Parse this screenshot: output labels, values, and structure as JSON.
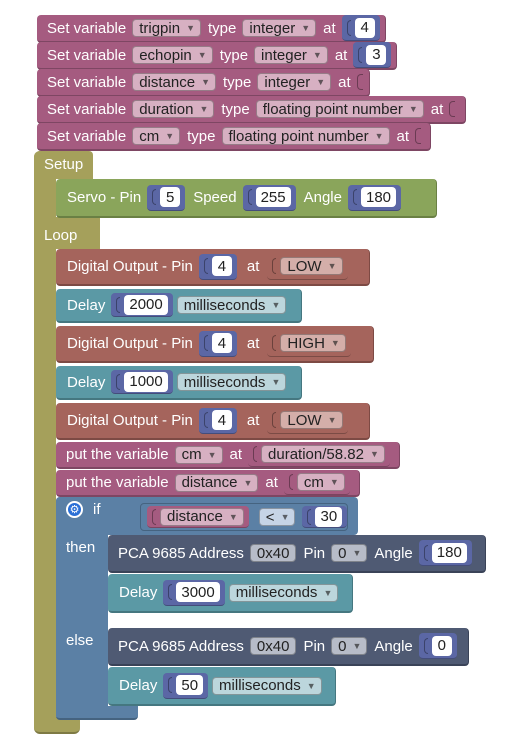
{
  "vars": [
    {
      "prefix": "Set variable",
      "name": "trigpin",
      "type_label": "type",
      "type": "integer",
      "at": "at",
      "value": "4"
    },
    {
      "prefix": "Set variable",
      "name": "echopin",
      "type_label": "type",
      "type": "integer",
      "at": "at",
      "value": "3"
    },
    {
      "prefix": "Set variable",
      "name": "distance",
      "type_label": "type",
      "type": "integer",
      "at": "at",
      "value": ""
    },
    {
      "prefix": "Set variable",
      "name": "duration",
      "type_label": "type",
      "type": "floating point number",
      "at": "at",
      "value": ""
    },
    {
      "prefix": "Set variable",
      "name": "cm",
      "type_label": "type",
      "type": "floating point number",
      "at": "at",
      "value": ""
    }
  ],
  "setup": {
    "label": "Setup",
    "servo": {
      "title": "Servo - Pin",
      "pin": "5",
      "speed_label": "Speed",
      "speed": "255",
      "angle_label": "Angle",
      "angle": "180"
    }
  },
  "loop": {
    "label": "Loop",
    "dout1": {
      "title": "Digital Output - Pin",
      "pin": "4",
      "at": "at",
      "state": "LOW"
    },
    "delay1": {
      "title": "Delay",
      "ms": "2000",
      "unit": "milliseconds"
    },
    "dout2": {
      "title": "Digital Output - Pin",
      "pin": "4",
      "at": "at",
      "state": "HIGH"
    },
    "delay2": {
      "title": "Delay",
      "ms": "1000",
      "unit": "milliseconds"
    },
    "dout3": {
      "title": "Digital Output - Pin",
      "pin": "4",
      "at": "at",
      "state": "LOW"
    },
    "put1": {
      "title": "put the variable",
      "var": "cm",
      "at": "at",
      "expr": "duration/58.82"
    },
    "put2": {
      "title": "put the variable",
      "var": "distance",
      "at": "at",
      "src": "cm"
    },
    "if": {
      "if_label": "if",
      "then_label": "then",
      "else_label": "else",
      "cond": {
        "var": "distance",
        "op": "<",
        "value": "30"
      },
      "then_pca": {
        "title": "PCA 9685 Address",
        "address": "0x40",
        "pin_label": "Pin",
        "pin": "0",
        "angle_label": "Angle",
        "angle": "180"
      },
      "then_delay": {
        "title": "Delay",
        "ms": "3000",
        "unit": "milliseconds"
      },
      "else_pca": {
        "title": "PCA 9685 Address",
        "address": "0x40",
        "pin_label": "Pin",
        "pin": "0",
        "angle_label": "Angle",
        "angle": "0"
      },
      "else_delay": {
        "title": "Delay",
        "ms": "50",
        "unit": "milliseconds"
      }
    }
  },
  "colors": {
    "variable": "#a55b80",
    "integer": "#5b67a5",
    "setup_loop": "#a5a05b",
    "servo": "#8aa55b",
    "digital_output": "#a5645c",
    "delay": "#5b99a5",
    "logic": "#5b80a5",
    "pca": "#4f5a73"
  },
  "icons": {
    "dropdown": "caret-down-icon",
    "mutator": "gear-icon"
  }
}
